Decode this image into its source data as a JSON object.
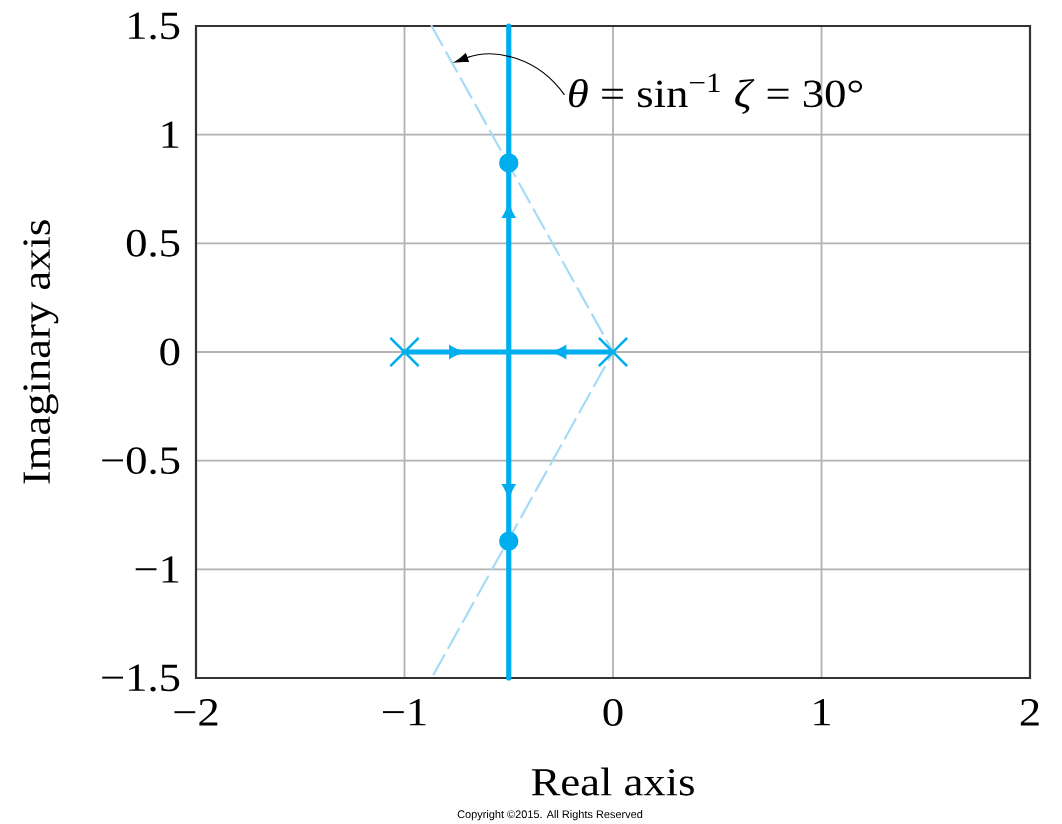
{
  "chart_data": {
    "type": "line",
    "xlabel": "Real axis",
    "ylabel": "Imaginary axis",
    "xlim": [
      -2,
      2
    ],
    "ylim": [
      -1.5,
      1.5
    ],
    "xticks": [
      {
        "value": -2,
        "label": "−2"
      },
      {
        "value": -1,
        "label": "−1"
      },
      0,
      1,
      2
    ],
    "yticks": [
      {
        "value": -1.5,
        "label": "−1.5"
      },
      {
        "value": -1,
        "label": "−1"
      },
      {
        "value": -0.5,
        "label": "−0.5"
      },
      0,
      0.5,
      1,
      1.5
    ],
    "grid": true,
    "annotations": [
      {
        "text": "*θ* = sin$^{−1}$ *ζ* = 30°",
        "x": -0.77,
        "y": 1.33
      },
      "Copyright ©2015. All Rights Reserved"
    ],
    "series": [
      {
        "color": "#00aeef",
        "x": [
          -1,
          0
        ],
        "values": [
          0,
          0
        ]
      },
      {
        "color": "#00aeef",
        "x": [
          -0.5,
          -0.5
        ],
        "values": [
          -1.5,
          1.5
        ]
      },
      {
        "type": "scatter",
        "marker": "cross",
        "color": "#00aeef",
        "x": [
          -1,
          0
        ],
        "values": [
          0,
          0
        ]
      },
      {
        "type": "scatter",
        "marker": "circle",
        "color": "#00aeef",
        "x": [
          -0.5,
          -0.5
        ],
        "values": [
          0.87,
          -0.87
        ]
      },
      {
        "color": "#a6dbf5",
        "line_style": "dashed",
        "x": [
          -0.87,
          0,
          -0.87
        ],
        "values": [
          1.5,
          0,
          -1.5
        ]
      }
    ]
  }
}
